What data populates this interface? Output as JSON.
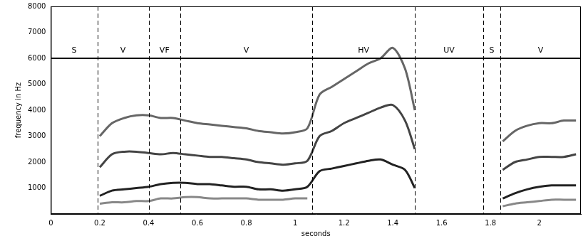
{
  "chart_data": {
    "type": "line",
    "x_label": "seconds",
    "y_label": "frequency in Hz",
    "xlim": [
      0,
      2.17
    ],
    "xticks": [
      0,
      0.2,
      0.4,
      0.6,
      0.8,
      1,
      1.2,
      1.4,
      1.6,
      1.8,
      2
    ],
    "ylim": [
      0,
      8000
    ],
    "yticks": [
      1000,
      2000,
      3000,
      4000,
      5000,
      6000,
      7000,
      8000
    ],
    "grid": false,
    "hline": 6000,
    "segments": [
      {
        "label": "S",
        "start": 0,
        "end": 0.19
      },
      {
        "label": "V",
        "start": 0.19,
        "end": 0.4
      },
      {
        "label": "VF",
        "start": 0.4,
        "end": 0.53
      },
      {
        "label": "V",
        "start": 0.53,
        "end": 1.07
      },
      {
        "label": "HV",
        "start": 1.07,
        "end": 1.49
      },
      {
        "label": "UV",
        "start": 1.49,
        "end": 1.77
      },
      {
        "label": "S",
        "start": 1.77,
        "end": 1.84
      },
      {
        "label": "V",
        "start": 1.84,
        "end": 2.17
      }
    ],
    "x": [
      0.2,
      0.25,
      0.3,
      0.35,
      0.4,
      0.45,
      0.5,
      0.55,
      0.6,
      0.65,
      0.7,
      0.75,
      0.8,
      0.85,
      0.9,
      0.95,
      1.0,
      1.05,
      1.1,
      1.15,
      1.2,
      1.25,
      1.3,
      1.35,
      1.4,
      1.45,
      1.49,
      1.6,
      1.85,
      1.9,
      1.95,
      2.0,
      2.05,
      2.1,
      2.15
    ],
    "series": [
      {
        "color": "#222222",
        "values": [
          700,
          900,
          950,
          1000,
          1050,
          1150,
          1200,
          1200,
          1150,
          1150,
          1100,
          1050,
          1050,
          950,
          950,
          900,
          950,
          1050,
          1650,
          1750,
          1850,
          1950,
          2050,
          2100,
          1900,
          1700,
          1000,
          null,
          600,
          800,
          950,
          1050,
          1100,
          1100,
          1100
        ]
      },
      {
        "color": "#444444",
        "values": [
          1800,
          2300,
          2400,
          2400,
          2350,
          2300,
          2350,
          2300,
          2250,
          2200,
          2200,
          2150,
          2100,
          2000,
          1950,
          1900,
          1950,
          2050,
          3000,
          3200,
          3500,
          3700,
          3900,
          4100,
          4200,
          3600,
          2500,
          null,
          1700,
          2000,
          2100,
          2200,
          2200,
          2200,
          2300
        ]
      },
      {
        "color": "#666666",
        "values": [
          3000,
          3500,
          3700,
          3800,
          3800,
          3700,
          3700,
          3600,
          3500,
          3450,
          3400,
          3350,
          3300,
          3200,
          3150,
          3100,
          3150,
          3300,
          4600,
          4900,
          5200,
          5500,
          5800,
          6000,
          6400,
          5600,
          4000,
          null,
          2800,
          3200,
          3400,
          3500,
          3500,
          3600,
          3600
        ]
      },
      {
        "color": "#888888",
        "values": [
          400,
          450,
          450,
          500,
          500,
          600,
          600,
          650,
          650,
          600,
          600,
          600,
          600,
          550,
          550,
          550,
          600,
          600,
          null,
          null,
          null,
          null,
          null,
          null,
          null,
          null,
          null,
          null,
          300,
          400,
          450,
          500,
          550,
          550,
          550
        ]
      }
    ]
  }
}
